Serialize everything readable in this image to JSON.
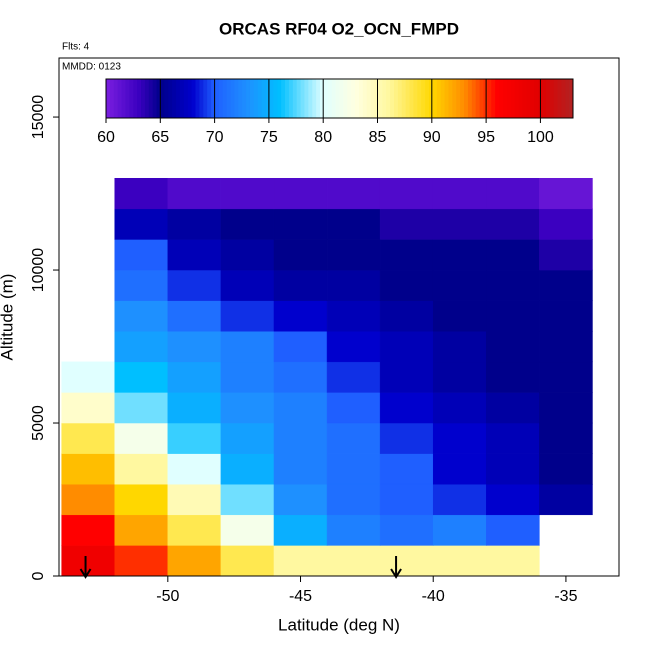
{
  "chart_data": {
    "type": "heatmap",
    "title": "ORCAS RF04 O2_OCN_FMPD",
    "subtitle": "Flts: 4",
    "annotation": "MMDD: 0123",
    "xlabel": "Latitude (deg N)",
    "ylabel": "Altitude (m)",
    "xlim": [
      -54.1,
      -33.0
    ],
    "ylim": [
      0,
      16930
    ],
    "xticks": [
      -50,
      -45,
      -40,
      -35
    ],
    "yticks": [
      0,
      5000,
      10000,
      15000
    ],
    "x_edges": [
      -54,
      -52,
      -50,
      -48,
      -46,
      -44,
      -42,
      -40,
      -38,
      -36,
      -34
    ],
    "y_edges": [
      0,
      1000,
      2000,
      3000,
      4000,
      5000,
      6000,
      7000,
      8000,
      9000,
      10000,
      11000,
      12000,
      13000
    ],
    "z": [
      [
        98,
        95,
        92,
        88,
        86,
        86,
        86,
        86,
        86,
        null
      ],
      [
        96,
        92,
        88,
        82,
        75,
        72,
        71,
        72,
        70,
        null
      ],
      [
        93,
        90,
        85,
        78,
        73,
        71,
        70,
        69,
        68,
        66
      ],
      [
        91,
        86,
        80,
        75,
        72,
        71,
        70,
        68,
        67,
        65
      ],
      [
        88,
        82,
        77,
        74,
        72,
        71,
        69,
        68,
        67,
        65
      ],
      [
        84,
        78,
        75,
        73,
        72,
        70,
        68,
        67,
        66,
        65
      ],
      [
        80,
        76,
        74,
        72,
        71,
        69,
        67,
        66,
        65,
        65
      ],
      [
        null,
        74,
        73,
        72,
        70,
        68,
        67,
        66,
        65,
        65
      ],
      [
        null,
        73,
        71,
        69,
        68,
        67,
        66,
        65,
        65,
        65
      ],
      [
        null,
        71,
        69,
        67,
        66,
        66,
        65,
        65,
        65,
        65
      ],
      [
        null,
        70,
        67,
        66,
        65,
        65,
        65,
        65,
        65,
        64
      ],
      [
        null,
        67,
        66,
        65,
        65,
        65,
        64,
        64,
        64,
        63
      ],
      [
        null,
        63,
        62,
        62,
        62,
        62,
        62,
        62,
        62,
        61
      ]
    ],
    "zlim": [
      60,
      103
    ],
    "zticks": [
      60,
      65,
      70,
      75,
      80,
      85,
      90,
      95,
      100
    ],
    "colorscale": [
      {
        "value": 60,
        "color": "#7b1fe0"
      },
      {
        "value": 63,
        "color": "#3b00c0"
      },
      {
        "value": 65,
        "color": "#00008b"
      },
      {
        "value": 68,
        "color": "#0000cd"
      },
      {
        "value": 70,
        "color": "#1f5fff"
      },
      {
        "value": 73,
        "color": "#1e90ff"
      },
      {
        "value": 76,
        "color": "#00bfff"
      },
      {
        "value": 80,
        "color": "#e0ffff"
      },
      {
        "value": 83,
        "color": "#ffffe0"
      },
      {
        "value": 86,
        "color": "#fff8a0"
      },
      {
        "value": 90,
        "color": "#ffd700"
      },
      {
        "value": 93,
        "color": "#ff8c00"
      },
      {
        "value": 96,
        "color": "#ff0000"
      },
      {
        "value": 100,
        "color": "#e00000"
      },
      {
        "value": 103,
        "color": "#b22222"
      }
    ],
    "arrows": [
      -53.1,
      -41.4
    ]
  }
}
